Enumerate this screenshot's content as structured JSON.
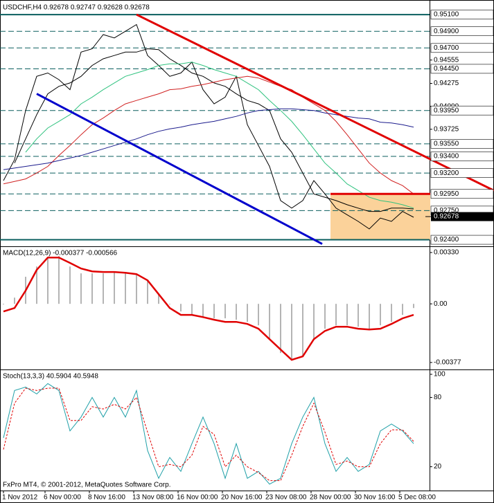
{
  "chart_data": [
    {
      "type": "line",
      "title": "USDCHF,H4  0.92678 0.92747 0.92628 0.92678",
      "x": [
        0,
        4,
        8,
        12,
        16,
        20,
        24,
        28,
        32,
        36,
        40,
        44,
        48,
        52,
        56,
        60,
        64,
        68,
        72,
        76,
        80,
        84,
        88,
        92,
        96,
        100,
        104,
        108,
        112,
        116,
        120,
        124,
        128,
        132,
        136,
        140,
        144,
        148
      ],
      "xlim": [
        -1.25,
        153.75
      ],
      "ylim": [
        0.9233,
        0.9525
      ],
      "yticks": [
        {
          "value": 0.94555,
          "label": "0.94555"
        },
        {
          "value": 0.94275,
          "label": "0.94275"
        },
        {
          "value": 0.94,
          "label": "0.94000"
        },
        {
          "value": 0.93725,
          "label": "0.93725"
        }
      ],
      "levels": [
        {
          "value": 0.951,
          "label": "0.95100",
          "style": "solid"
        },
        {
          "value": 0.949,
          "label": "0.94900",
          "style": "dashed"
        },
        {
          "value": 0.947,
          "label": "0.94700",
          "style": "dashed"
        },
        {
          "value": 0.9445,
          "label": "0.94450",
          "style": "dashed"
        },
        {
          "value": 0.9395,
          "label": "0.93950",
          "style": "dashed"
        },
        {
          "value": 0.9355,
          "label": "0.93550",
          "style": "dashed"
        },
        {
          "value": 0.934,
          "label": "0.93400",
          "style": "dashed"
        },
        {
          "value": 0.932,
          "label": "0.93200",
          "style": "dashed"
        },
        {
          "value": 0.9295,
          "label": "0.92950",
          "style": "dashed"
        },
        {
          "value": 0.9275,
          "label": "0.92750",
          "style": "dashed"
        },
        {
          "value": 0.924,
          "label": "0.92400",
          "style": "solid"
        }
      ],
      "level_color": "#0a5e5e",
      "last": {
        "value": 0.92678,
        "label": "0.92678"
      },
      "zones": [
        {
          "color": "#fbd29a",
          "x": [
            118,
            154
          ],
          "values": [
            0.924,
            0.9295
          ]
        }
      ],
      "trendlines": [
        {
          "color": "#e00000",
          "x": [
            48,
            177
          ],
          "values": [
            0.951,
            0.9299
          ]
        },
        {
          "color": "#0000cc",
          "x": [
            12,
            115
          ],
          "values": [
            0.9415,
            0.9235
          ]
        },
        {
          "color": "#e00000",
          "x": [
            118,
            154
          ],
          "values": [
            0.9295,
            0.9295
          ]
        }
      ],
      "series": [
        {
          "color": "#000000",
          "values": [
            0.9311,
            0.9336,
            0.9395,
            0.9436,
            0.944,
            0.9432,
            0.942,
            0.9465,
            0.9469,
            0.9486,
            0.9482,
            0.949,
            0.9498,
            0.9461,
            0.9449,
            0.9436,
            0.944,
            0.9453,
            0.942,
            0.9403,
            0.9411,
            0.9436,
            0.9378,
            0.9353,
            0.9328,
            0.9287,
            0.9278,
            0.9287,
            0.9311,
            0.9295,
            0.9278,
            0.927,
            0.9262,
            0.9253,
            0.9266,
            0.9262,
            0.9274,
            0.9267
          ]
        },
        {
          "color": "#000000",
          "values": [
            null,
            0.9332,
            0.9361,
            0.939,
            0.9415,
            0.9424,
            0.9428,
            0.9436,
            0.9449,
            0.9457,
            0.9461,
            0.9465,
            0.9465,
            0.9469,
            0.9468,
            0.9457,
            0.9449,
            0.944,
            0.9436,
            0.9428,
            0.9424,
            0.9415,
            0.9407,
            0.9403,
            0.9395,
            0.9361,
            0.9345,
            0.932,
            0.9295,
            0.9291,
            0.9287,
            0.9282,
            0.9278,
            0.9274,
            0.9274,
            0.9278,
            0.9278,
            0.9277
          ]
        },
        {
          "color": "#2ec27e",
          "values": [
            null,
            null,
            0.9345,
            0.9361,
            0.9374,
            0.9382,
            0.939,
            0.9403,
            0.9411,
            0.942,
            0.9428,
            0.9436,
            0.944,
            0.9444,
            0.9449,
            0.9451,
            0.9451,
            0.9453,
            0.9449,
            0.9444,
            0.944,
            0.9436,
            0.9428,
            0.942,
            0.9407,
            0.9395,
            0.9382,
            0.9366,
            0.9349,
            0.9332,
            0.932,
            0.9307,
            0.9299,
            0.9291,
            0.9287,
            0.9285,
            0.9282,
            0.9278
          ]
        },
        {
          "color": "#d02020",
          "values": [
            0.9307,
            0.931,
            0.9313,
            0.932,
            0.9328,
            0.9341,
            0.9353,
            0.9366,
            0.9378,
            0.9386,
            0.9395,
            0.9403,
            0.9407,
            0.9411,
            0.9415,
            0.942,
            0.9421,
            0.9424,
            0.9426,
            0.9429,
            0.9432,
            0.9434,
            0.9436,
            0.9434,
            0.9429,
            0.9424,
            0.942,
            0.9411,
            0.9403,
            0.9395,
            0.9382,
            0.9366,
            0.9349,
            0.9332,
            0.932,
            0.9311,
            0.9305,
            0.9295
          ]
        },
        {
          "color": "#1a1a8c",
          "values": [
            0.9324,
            0.9326,
            0.9328,
            0.933,
            0.9332,
            0.9335,
            0.9338,
            0.9341,
            0.9345,
            0.9349,
            0.9353,
            0.9357,
            0.9361,
            0.9366,
            0.937,
            0.9373,
            0.9375,
            0.9378,
            0.938,
            0.9382,
            0.9385,
            0.9388,
            0.9392,
            0.9395,
            0.9396,
            0.9397,
            0.9397,
            0.9396,
            0.9395,
            0.9392,
            0.939,
            0.9388,
            0.9386,
            0.9385,
            0.9381,
            0.938,
            0.9378,
            0.9375
          ]
        }
      ]
    },
    {
      "type": "bar",
      "title": "MACD(12,26,9) -0.000377 -0.000566",
      "x": [
        0,
        4,
        8,
        12,
        16,
        20,
        24,
        28,
        32,
        36,
        40,
        44,
        48,
        52,
        56,
        60,
        64,
        68,
        72,
        76,
        80,
        84,
        88,
        92,
        96,
        100,
        104,
        108,
        112,
        116,
        120,
        124,
        128,
        132,
        136,
        140,
        144,
        148
      ],
      "xlim": [
        -1.25,
        153.75
      ],
      "ylim": [
        -0.00413,
        0.00361
      ],
      "yticks": [
        {
          "value": 0.0033,
          "label": "0.00330"
        },
        {
          "value": 0,
          "label": "0.00"
        },
        {
          "value": -0.00377,
          "label": "-0.00377"
        }
      ],
      "series": [
        {
          "kind": "histogram",
          "color": "#b4b4b4",
          "values": [
            -4e-05,
            0.0004,
            0.00174,
            0.0024,
            0.00298,
            0.00307,
            0.0024,
            0.00196,
            0.00196,
            0.00196,
            0.00205,
            0.00196,
            0.00187,
            0.00151,
            0.00062,
            -4e-05,
            -0.00049,
            -0.00071,
            -0.00085,
            -0.00093,
            -0.00093,
            -0.00102,
            -0.00116,
            -0.00138,
            -0.00227,
            -0.00316,
            -0.0036,
            -0.00338,
            -0.00227,
            -0.0016,
            -0.00138,
            -0.00138,
            -0.00147,
            -0.0016,
            -0.00138,
            -0.00116,
            -0.00071,
            -0.00027
          ]
        },
        {
          "kind": "line",
          "color": "#e00000",
          "width": 2.5,
          "values": [
            -0.00049,
            -0.00027,
            0.00085,
            0.00218,
            0.00298,
            0.00298,
            0.00263,
            0.00227,
            0.00209,
            0.00205,
            0.00205,
            0.002,
            0.00191,
            0.00151,
            0.00062,
            -0.00027,
            -0.00071,
            -0.00071,
            -0.00085,
            -0.00102,
            -0.00116,
            -0.00116,
            -0.00129,
            -0.0016,
            -0.00227,
            -0.00294,
            -0.0036,
            -0.00338,
            -0.00227,
            -0.00174,
            -0.00147,
            -0.00147,
            -0.0016,
            -0.00165,
            -0.0016,
            -0.00129,
            -0.00093,
            -0.00071
          ]
        }
      ]
    },
    {
      "type": "line",
      "title": "Stoch(13,3,3) 40.5904 40.5948",
      "x": [
        0,
        4,
        8,
        12,
        16,
        20,
        24,
        28,
        32,
        36,
        40,
        44,
        48,
        52,
        56,
        60,
        64,
        68,
        72,
        76,
        80,
        84,
        88,
        92,
        96,
        100,
        104,
        108,
        112,
        116,
        120,
        124,
        128,
        132,
        136,
        140,
        144,
        148
      ],
      "xlim": [
        -1.25,
        153.75
      ],
      "ylim": [
        0,
        103
      ],
      "yticks": [
        100,
        80,
        20
      ],
      "xticks": [
        {
          "value": 0,
          "label": "1 Nov 2012"
        },
        {
          "value": 15,
          "label": "6 Nov 00:00"
        },
        {
          "value": 31,
          "label": "8 Nov 16:00"
        },
        {
          "value": 47,
          "label": "13 Nov 08:00"
        },
        {
          "value": 63,
          "label": "16 Nov 00:00"
        },
        {
          "value": 79,
          "label": "20 Nov 16:00"
        },
        {
          "value": 95,
          "label": "23 Nov 08:00"
        },
        {
          "value": 111,
          "label": "28 Nov 00:00"
        },
        {
          "value": 127,
          "label": "30 Nov 16:00"
        },
        {
          "value": 143,
          "label": "5 Dec 08:00"
        }
      ],
      "annotation": "FxPro MT4, © 2001-2012, MetaQuotes Software Corp.",
      "series": [
        {
          "kind": "line",
          "color": "#20a0a8",
          "values": [
            45,
            86,
            89,
            83,
            92,
            86,
            51,
            63,
            80,
            63,
            80,
            63,
            86,
            34,
            10,
            28,
            16,
            40,
            63,
            40,
            10,
            40,
            10,
            16,
            5,
            10,
            40,
            63,
            80,
            40,
            16,
            28,
            16,
            22,
            51,
            57,
            51,
            40
          ]
        },
        {
          "kind": "line",
          "color": "#e00000",
          "dash": true,
          "values": [
            35,
            75,
            88,
            86,
            88,
            88,
            60,
            60,
            72,
            70,
            74,
            70,
            80,
            50,
            20,
            22,
            20,
            30,
            55,
            48,
            20,
            30,
            20,
            15,
            8,
            8,
            30,
            55,
            75,
            50,
            22,
            25,
            20,
            20,
            40,
            52,
            52,
            42
          ]
        }
      ]
    }
  ]
}
